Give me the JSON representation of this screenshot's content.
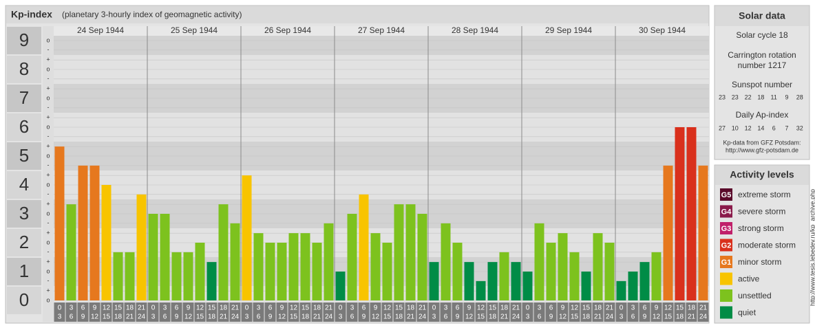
{
  "chart_data": {
    "type": "bar",
    "title": "Kp-index",
    "subtitle": "(planetary 3-hourly index of geomagnetic activity)",
    "days": [
      "24 Sep 1944",
      "25 Sep 1944",
      "26 Sep 1944",
      "27 Sep 1944",
      "28 Sep 1944",
      "29 Sep 1944",
      "30 Sep 1944"
    ],
    "intervals": [
      [
        "0",
        "3"
      ],
      [
        "3",
        "6"
      ],
      [
        "6",
        "9"
      ],
      [
        "9",
        "12"
      ],
      [
        "12",
        "15"
      ],
      [
        "15",
        "18"
      ],
      [
        "18",
        "21"
      ],
      [
        "21",
        "24"
      ]
    ],
    "values": [
      [
        5.33,
        3.33,
        4.67,
        4.67,
        4,
        1.67,
        1.67,
        3.67
      ],
      [
        3,
        3,
        1.67,
        1.67,
        2,
        1.33,
        3.33,
        2.67
      ],
      [
        4.33,
        2.33,
        2,
        2,
        2.33,
        2.33,
        2,
        2.67
      ],
      [
        1,
        3,
        3.67,
        2.33,
        2,
        3.33,
        3.33,
        3
      ],
      [
        1.33,
        2.67,
        2,
        1.33,
        0.67,
        1.33,
        1.67,
        1.33
      ],
      [
        1,
        2.67,
        2,
        2.33,
        1.67,
        1,
        2.33,
        2
      ],
      [
        0.67,
        1,
        1.33,
        1.67,
        4.67,
        6,
        6,
        4.67
      ]
    ],
    "colors": [
      [
        "#e6781e",
        "#7dc21e",
        "#e6781e",
        "#e6781e",
        "#f8c400",
        "#7dc21e",
        "#7dc21e",
        "#f8c400"
      ],
      [
        "#7dc21e",
        "#7dc21e",
        "#7dc21e",
        "#7dc21e",
        "#7dc21e",
        "#008c46",
        "#7dc21e",
        "#7dc21e"
      ],
      [
        "#f8c400",
        "#7dc21e",
        "#7dc21e",
        "#7dc21e",
        "#7dc21e",
        "#7dc21e",
        "#7dc21e",
        "#7dc21e"
      ],
      [
        "#008c46",
        "#7dc21e",
        "#f8c400",
        "#7dc21e",
        "#7dc21e",
        "#7dc21e",
        "#7dc21e",
        "#7dc21e"
      ],
      [
        "#008c46",
        "#7dc21e",
        "#7dc21e",
        "#008c46",
        "#008c46",
        "#008c46",
        "#7dc21e",
        "#008c46"
      ],
      [
        "#008c46",
        "#7dc21e",
        "#7dc21e",
        "#7dc21e",
        "#7dc21e",
        "#008c46",
        "#7dc21e",
        "#7dc21e"
      ],
      [
        "#008c46",
        "#008c46",
        "#008c46",
        "#7dc21e",
        "#e6781e",
        "#d9301c",
        "#d9301c",
        "#e6781e"
      ]
    ],
    "ylim": [
      0,
      9.5
    ],
    "yticks": [
      0,
      1,
      2,
      3,
      4,
      5,
      6,
      7,
      8,
      9
    ],
    "yminorticks": [
      {
        "value": 0,
        "label": "o"
      },
      {
        "value": 0.33,
        "label": "+"
      },
      {
        "value": 0.67,
        "label": "-"
      },
      {
        "value": 1,
        "label": "o"
      },
      {
        "value": 1.33,
        "label": "+"
      },
      {
        "value": 1.67,
        "label": "-"
      },
      {
        "value": 2,
        "label": "o"
      },
      {
        "value": 2.33,
        "label": "+"
      },
      {
        "value": 2.67,
        "label": "-"
      },
      {
        "value": 3,
        "label": "o"
      },
      {
        "value": 3.33,
        "label": "+"
      },
      {
        "value": 3.67,
        "label": "-"
      },
      {
        "value": 4,
        "label": "o"
      },
      {
        "value": 4.33,
        "label": "+"
      },
      {
        "value": 4.67,
        "label": "-"
      },
      {
        "value": 5,
        "label": "o"
      },
      {
        "value": 5.33,
        "label": "+"
      },
      {
        "value": 5.67,
        "label": "-"
      },
      {
        "value": 6,
        "label": "o"
      },
      {
        "value": 6.33,
        "label": "+"
      },
      {
        "value": 6.67,
        "label": "-"
      },
      {
        "value": 7,
        "label": "o"
      },
      {
        "value": 7.33,
        "label": "+"
      },
      {
        "value": 7.67,
        "label": "-"
      },
      {
        "value": 8,
        "label": "o"
      },
      {
        "value": 8.33,
        "label": "+"
      },
      {
        "value": 8.67,
        "label": "-"
      },
      {
        "value": 9,
        "label": "o"
      }
    ],
    "grid": true
  },
  "solar": {
    "title": "Solar data",
    "cycle": "Solar cycle 18",
    "carrington": [
      "Carrington rotation",
      "number 1217"
    ],
    "sunspot_title": "Sunspot number",
    "sunspot": [
      23,
      23,
      22,
      18,
      11,
      9,
      28
    ],
    "ap_title": "Daily Ap-index",
    "ap": [
      27,
      10,
      12,
      14,
      6,
      7,
      32
    ],
    "source": [
      "Kp-data from GFZ Potsdam:",
      "http://www.gfz-potsdam.de"
    ]
  },
  "activity": {
    "title": "Activity levels",
    "items": [
      {
        "badge": "G5",
        "label": "extreme storm",
        "color": "#5a0a2a"
      },
      {
        "badge": "G4",
        "label": "severe storm",
        "color": "#8a1a4a"
      },
      {
        "badge": "G3",
        "label": "strong storm",
        "color": "#c0206a"
      },
      {
        "badge": "G2",
        "label": "moderate storm",
        "color": "#d9301c"
      },
      {
        "badge": "G1",
        "label": "minor storm",
        "color": "#e6781e"
      },
      {
        "label": "active",
        "color": "#f8c400"
      },
      {
        "label": "unsettled",
        "color": "#7dc21e"
      },
      {
        "label": "quiet",
        "color": "#008c46"
      }
    ]
  },
  "credit": "http://www.tesis.lebedev.ru/kp_archive.php"
}
